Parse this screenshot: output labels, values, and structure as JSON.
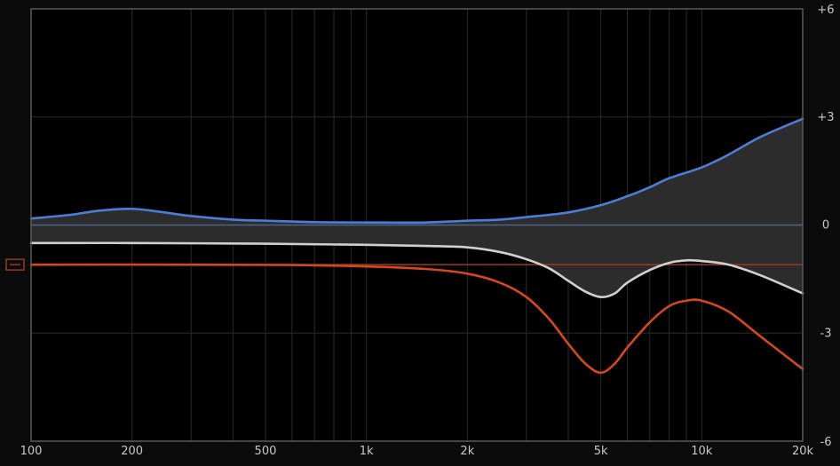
{
  "chart_data": {
    "type": "line",
    "title": "",
    "xlabel": "",
    "ylabel": "",
    "x_scale": "log",
    "xlim": [
      100,
      20000
    ],
    "ylim": [
      -6,
      6
    ],
    "grid": true,
    "x_ticks": [
      {
        "value": 100,
        "label": "100"
      },
      {
        "value": 200,
        "label": "200"
      },
      {
        "value": 500,
        "label": "500"
      },
      {
        "value": 1000,
        "label": "1k"
      },
      {
        "value": 2000,
        "label": "2k"
      },
      {
        "value": 5000,
        "label": "5k"
      },
      {
        "value": 10000,
        "label": "10k"
      },
      {
        "value": 20000,
        "label": "20k"
      }
    ],
    "y_ticks": [
      {
        "value": 6,
        "label": "+6"
      },
      {
        "value": 3,
        "label": "+3"
      },
      {
        "value": 0,
        "label": "0"
      },
      {
        "value": -3,
        "label": "-3"
      },
      {
        "value": -6,
        "label": "-6"
      }
    ],
    "reference_level": -1.1,
    "series": [
      {
        "color": "#4a7fd6",
        "points": [
          [
            100,
            0.18
          ],
          [
            130,
            0.28
          ],
          [
            160,
            0.4
          ],
          [
            200,
            0.45
          ],
          [
            250,
            0.35
          ],
          [
            300,
            0.25
          ],
          [
            400,
            0.15
          ],
          [
            500,
            0.12
          ],
          [
            700,
            0.08
          ],
          [
            1000,
            0.07
          ],
          [
            1500,
            0.07
          ],
          [
            2000,
            0.12
          ],
          [
            2500,
            0.15
          ],
          [
            3000,
            0.22
          ],
          [
            4000,
            0.35
          ],
          [
            5000,
            0.55
          ],
          [
            6000,
            0.8
          ],
          [
            7000,
            1.05
          ],
          [
            8000,
            1.3
          ],
          [
            10000,
            1.6
          ],
          [
            12000,
            1.95
          ],
          [
            15000,
            2.45
          ],
          [
            20000,
            2.95
          ]
        ]
      },
      {
        "color": "#d0d0d0",
        "points": [
          [
            100,
            -0.5
          ],
          [
            200,
            -0.5
          ],
          [
            500,
            -0.52
          ],
          [
            1000,
            -0.55
          ],
          [
            1500,
            -0.58
          ],
          [
            2000,
            -0.62
          ],
          [
            2500,
            -0.75
          ],
          [
            3000,
            -0.95
          ],
          [
            3500,
            -1.2
          ],
          [
            4000,
            -1.55
          ],
          [
            4500,
            -1.85
          ],
          [
            5000,
            -2.0
          ],
          [
            5500,
            -1.9
          ],
          [
            6000,
            -1.6
          ],
          [
            7000,
            -1.25
          ],
          [
            8000,
            -1.05
          ],
          [
            9000,
            -0.98
          ],
          [
            10000,
            -1.0
          ],
          [
            12000,
            -1.1
          ],
          [
            15000,
            -1.4
          ],
          [
            20000,
            -1.9
          ]
        ]
      },
      {
        "color": "#d6471c",
        "points": [
          [
            100,
            -1.1
          ],
          [
            300,
            -1.1
          ],
          [
            600,
            -1.11
          ],
          [
            1000,
            -1.15
          ],
          [
            1500,
            -1.22
          ],
          [
            2000,
            -1.35
          ],
          [
            2500,
            -1.6
          ],
          [
            3000,
            -2.0
          ],
          [
            3500,
            -2.6
          ],
          [
            4000,
            -3.3
          ],
          [
            4500,
            -3.85
          ],
          [
            5000,
            -4.1
          ],
          [
            5500,
            -3.85
          ],
          [
            6000,
            -3.4
          ],
          [
            7000,
            -2.7
          ],
          [
            8000,
            -2.25
          ],
          [
            9000,
            -2.1
          ],
          [
            10000,
            -2.1
          ],
          [
            12000,
            -2.4
          ],
          [
            15000,
            -3.1
          ],
          [
            20000,
            -4.0
          ]
        ]
      }
    ],
    "colors": {
      "background": "#000000",
      "frame": "#5a5a5a",
      "grid": "#2a2a2a",
      "zero_line": "#4a6588",
      "reference_line": "#9a3a22",
      "fill": "#2c2c2c"
    },
    "handle_icon": "minus-box-icon"
  }
}
